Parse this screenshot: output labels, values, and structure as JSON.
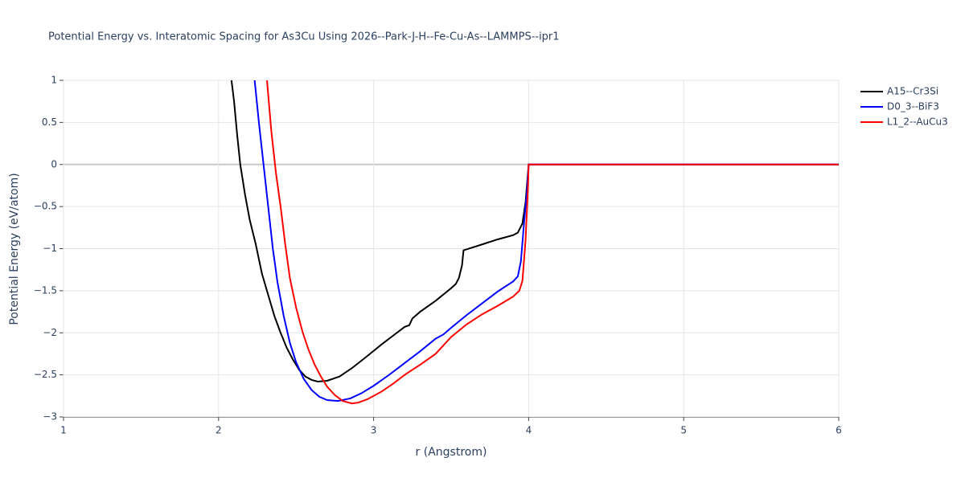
{
  "chart_data": {
    "type": "line",
    "title": "Potential Energy vs. Interatomic Spacing for As3Cu Using 2026--Park-J-H--Fe-Cu-As--LAMMPS--ipr1",
    "x_label": "r (Angstrom)",
    "y_label": "Potential Energy (eV/atom)",
    "xlim": [
      1,
      6
    ],
    "ylim": [
      -3,
      1
    ],
    "xticks": [
      1,
      2,
      3,
      4,
      5,
      6
    ],
    "yticks": [
      1,
      0.5,
      0,
      {
        "value": -0.5,
        "label": "−0.5"
      },
      {
        "value": -1,
        "label": "−1"
      },
      {
        "value": -1.5,
        "label": "−1.5"
      },
      {
        "value": -2,
        "label": "−2"
      },
      {
        "value": -2.5,
        "label": "−2.5"
      },
      {
        "value": -3,
        "label": "−3"
      }
    ],
    "grid": true,
    "legend": "top-right",
    "series": [
      {
        "name": "A15--Cr3Si",
        "color": "#000000",
        "x": [
          2.08,
          2.1,
          2.12,
          2.14,
          2.17,
          2.2,
          2.24,
          2.28,
          2.32,
          2.36,
          2.4,
          2.44,
          2.48,
          2.52,
          2.56,
          2.6,
          2.64,
          2.7,
          2.78,
          2.86,
          2.95,
          3.05,
          3.15,
          3.2,
          3.23,
          3.25,
          3.3,
          3.4,
          3.5,
          3.53,
          3.55,
          3.57,
          3.58,
          3.7,
          3.8,
          3.9,
          3.93,
          3.96,
          3.98,
          4.0,
          6.0
        ],
        "values": [
          1.05,
          0.75,
          0.35,
          0.0,
          -0.35,
          -0.65,
          -0.95,
          -1.3,
          -1.55,
          -1.8,
          -2.0,
          -2.18,
          -2.32,
          -2.44,
          -2.52,
          -2.56,
          -2.58,
          -2.57,
          -2.52,
          -2.42,
          -2.29,
          -2.14,
          -2.0,
          -1.93,
          -1.91,
          -1.83,
          -1.75,
          -1.62,
          -1.47,
          -1.42,
          -1.35,
          -1.2,
          -1.02,
          -0.95,
          -0.89,
          -0.84,
          -0.81,
          -0.7,
          -0.45,
          0,
          0
        ]
      },
      {
        "name": "D0_3--BiF3",
        "color": "#0000ff",
        "x": [
          2.23,
          2.26,
          2.29,
          2.32,
          2.35,
          2.38,
          2.42,
          2.46,
          2.5,
          2.55,
          2.6,
          2.65,
          2.7,
          2.77,
          2.85,
          2.92,
          3.0,
          3.1,
          3.2,
          3.3,
          3.4,
          3.45,
          3.5,
          3.6,
          3.7,
          3.8,
          3.9,
          3.93,
          3.95,
          3.97,
          3.99,
          4.0,
          6.0
        ],
        "values": [
          1.05,
          0.5,
          0.0,
          -0.5,
          -1.0,
          -1.4,
          -1.8,
          -2.12,
          -2.35,
          -2.55,
          -2.68,
          -2.76,
          -2.8,
          -2.81,
          -2.78,
          -2.72,
          -2.63,
          -2.5,
          -2.36,
          -2.22,
          -2.07,
          -2.02,
          -1.94,
          -1.79,
          -1.65,
          -1.51,
          -1.39,
          -1.33,
          -1.15,
          -0.7,
          -0.3,
          0,
          0
        ]
      },
      {
        "name": "L1_2--AuCu3",
        "color": "#ff0000",
        "x": [
          2.31,
          2.34,
          2.37,
          2.4,
          2.43,
          2.46,
          2.5,
          2.54,
          2.58,
          2.62,
          2.66,
          2.7,
          2.75,
          2.8,
          2.86,
          2.9,
          2.96,
          3.05,
          3.13,
          3.2,
          3.3,
          3.4,
          3.5,
          3.6,
          3.7,
          3.8,
          3.9,
          3.94,
          3.96,
          3.98,
          3.995,
          4.0,
          6.0
        ],
        "values": [
          1.05,
          0.4,
          -0.1,
          -0.5,
          -0.95,
          -1.35,
          -1.7,
          -1.98,
          -2.2,
          -2.38,
          -2.52,
          -2.64,
          -2.74,
          -2.81,
          -2.84,
          -2.83,
          -2.79,
          -2.7,
          -2.6,
          -2.5,
          -2.38,
          -2.25,
          -2.05,
          -1.9,
          -1.78,
          -1.68,
          -1.57,
          -1.5,
          -1.38,
          -0.9,
          -0.3,
          0,
          0
        ]
      }
    ]
  }
}
